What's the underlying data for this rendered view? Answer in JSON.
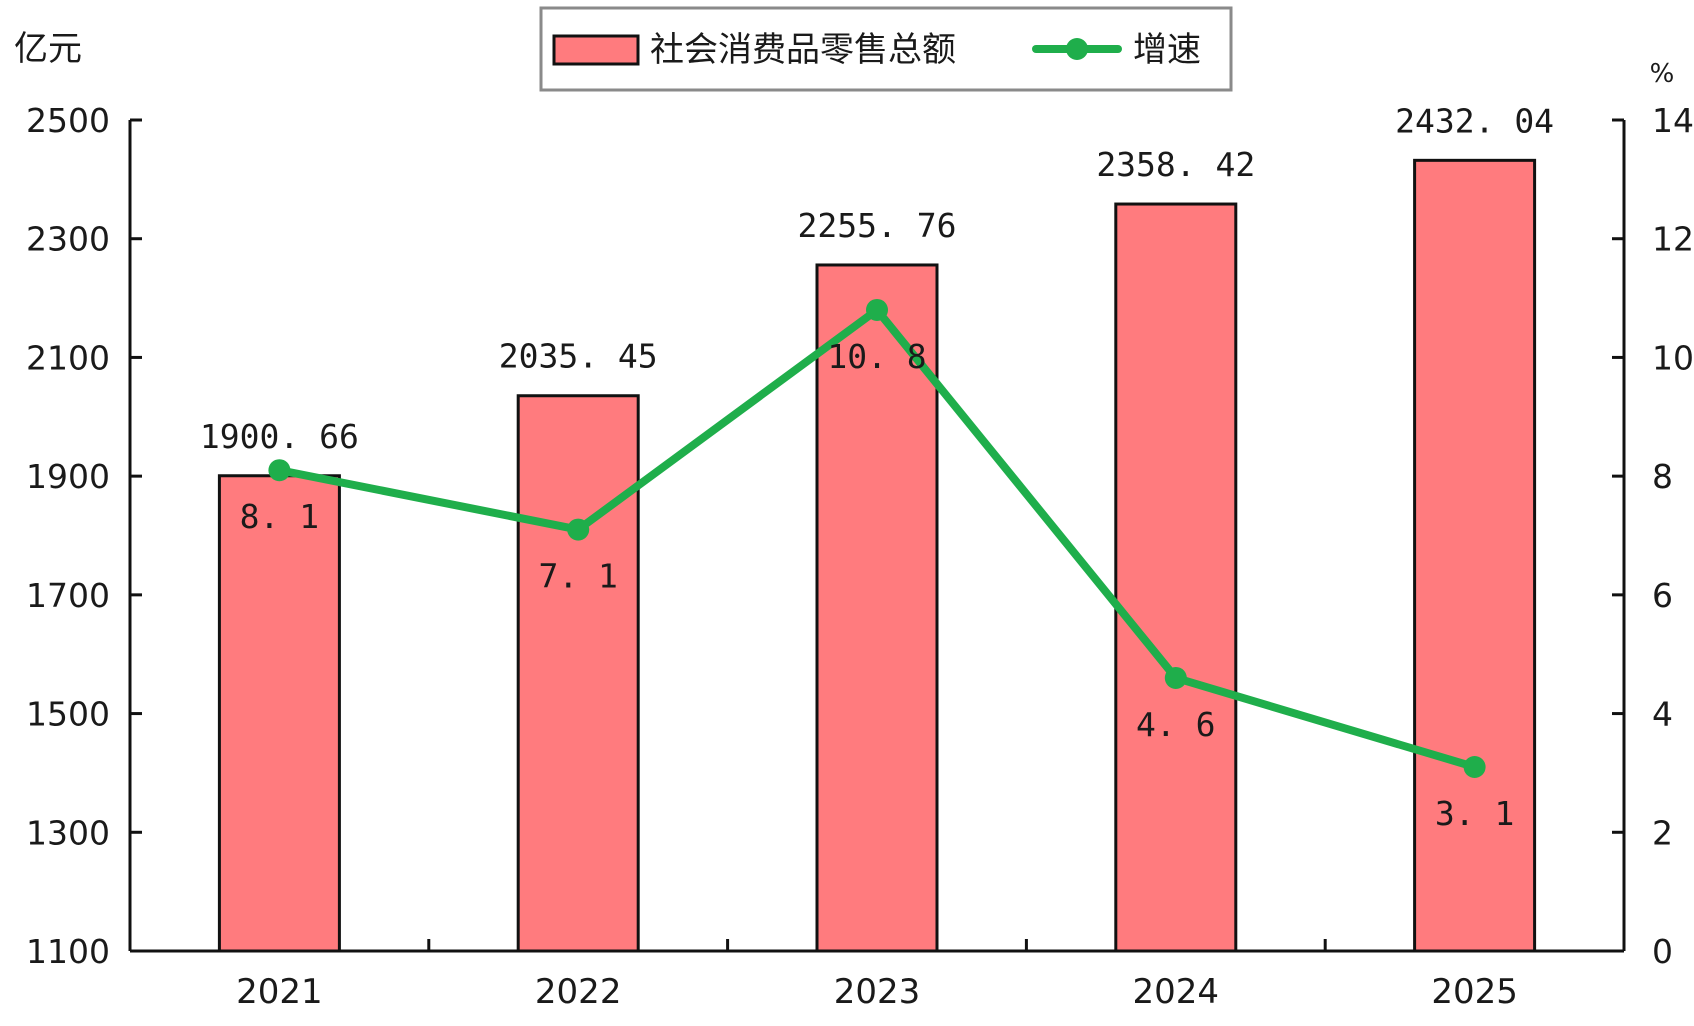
{
  "chart_data": {
    "type": "bar",
    "categories": [
      "2021",
      "2022",
      "2023",
      "2024",
      "2025"
    ],
    "left_axis": {
      "unit": "亿元",
      "ylim": [
        1100,
        2500
      ],
      "ticks": [
        1100,
        1300,
        1500,
        1700,
        1900,
        2100,
        2300,
        2500
      ]
    },
    "right_axis": {
      "unit": "%",
      "ylim": [
        0,
        14
      ],
      "ticks": [
        0,
        2,
        4,
        6,
        8,
        10,
        12,
        14
      ]
    },
    "series": [
      {
        "name": "社会消费品零售总额",
        "type": "bar",
        "axis": "left",
        "values": [
          1900.66,
          2035.45,
          2255.76,
          2358.42,
          2432.04
        ],
        "labels": [
          "1900. 66",
          "2035. 45",
          "2255. 76",
          "2358. 42",
          "2432. 04"
        ]
      },
      {
        "name": "增速",
        "type": "line",
        "axis": "right",
        "values": [
          8.1,
          7.1,
          10.8,
          4.6,
          3.1
        ],
        "labels": [
          "8. 1",
          "7. 1",
          "10. 8",
          "4. 6",
          "3. 1"
        ]
      }
    ],
    "legend_position": "top-center",
    "grid": false,
    "colors": {
      "bar_fill": "#ff7b7e",
      "bar_stroke": "#111111",
      "line": "#1fae4b",
      "axis": "#111111",
      "legend_border": "#8a8a8a"
    }
  }
}
